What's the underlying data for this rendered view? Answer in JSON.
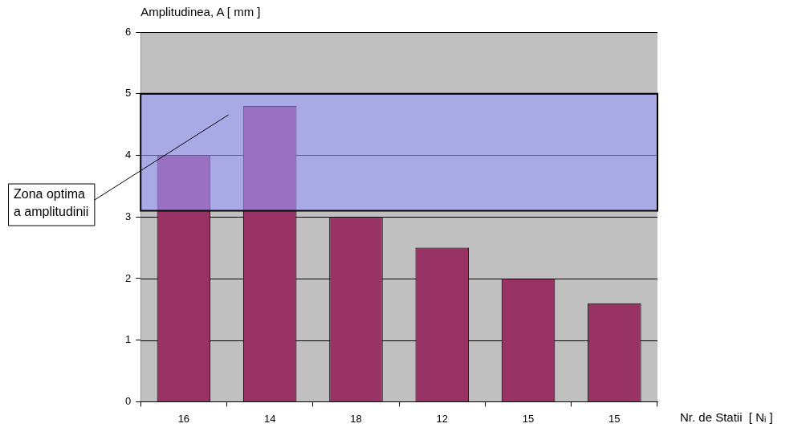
{
  "chart_data": {
    "type": "bar",
    "xlabel": "Nr. de Statii  [ Nᵢ ]",
    "ylabel": "Amplitudinea, A [ mm ]",
    "categories": [
      "16",
      "14",
      "18",
      "12",
      "15",
      "15"
    ],
    "values": [
      4.0,
      4.8,
      3.0,
      2.5,
      2.0,
      1.6
    ],
    "color": "#993366",
    "ylim": [
      0,
      6
    ],
    "yticks": [
      0,
      1,
      2,
      3,
      4,
      5,
      6
    ],
    "grid": "y",
    "bands": [
      {
        "axis": "y",
        "from": 3.1,
        "to": 5,
        "label": "Zona optima\na amplitudinii",
        "color": "#9999ff"
      }
    ]
  }
}
